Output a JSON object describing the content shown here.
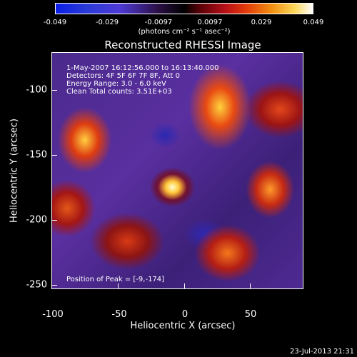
{
  "colorbar": {
    "ticks": [
      "-0.049",
      "-0.029",
      "-0.0097",
      "0.0097",
      "0.029",
      "0.049"
    ],
    "unit_label": "(photons cm⁻² s⁻¹ asec⁻²)"
  },
  "title": "Reconstructed RHESSI Image",
  "info": {
    "time": "1-May-2007 16:12:56.000 to 16:13:40.000",
    "detectors": "Detectors: 4F 5F 6F 7F 8F, Att 0",
    "energy": "Energy Range: 3.0 - 6.0 keV",
    "clean": "Clean     Total counts: 3.51E+03",
    "peak": "Position of Peak = [-9,-174]"
  },
  "axes": {
    "x_ticks": [
      "-100",
      "-50",
      "0",
      "50"
    ],
    "y_ticks": [
      "-100",
      "-150",
      "-200",
      "-250"
    ],
    "xlabel": "Heliocentric X (arcsec)",
    "ylabel": "Heliocentric Y (arcsec)"
  },
  "timestamp": "23-Jul-2013 21:31"
}
